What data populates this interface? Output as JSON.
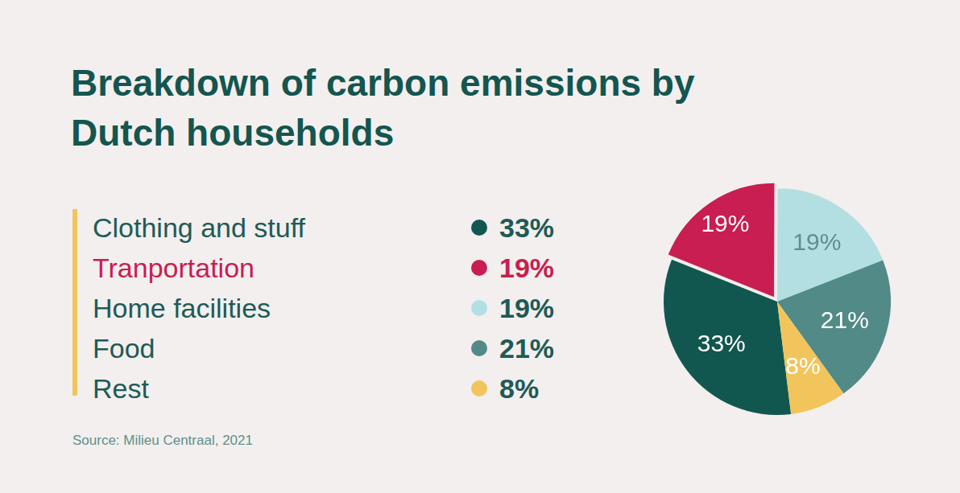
{
  "chart_data": {
    "type": "pie",
    "title": "Breakdown of carbon emissions by Dutch households",
    "categories": [
      "Clothing and stuff",
      "Tranportation",
      "Home facilities",
      "Food",
      "Rest"
    ],
    "values": [
      33,
      19,
      19,
      21,
      8
    ],
    "value_labels": [
      "33%",
      "19%",
      "19%",
      "21%",
      "8%"
    ],
    "colors": [
      "#12574f",
      "#c81e51",
      "#b3dfe3",
      "#518a86",
      "#f2c45c"
    ],
    "data_labels": true,
    "legend": "left",
    "source": "Source: Milieu Centraal, 2021"
  }
}
